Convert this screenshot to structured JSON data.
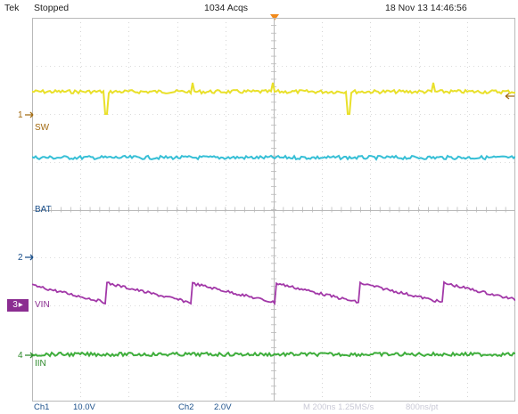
{
  "header": {
    "brand": "Tek",
    "run_state": "Stopped",
    "acquisitions": "1034 Acqs",
    "datetime": "18 Nov 13 14:46:56"
  },
  "channels": [
    {
      "marker": "1",
      "label": "SW",
      "color": "#e9e02a",
      "label_color": "#a26a10"
    },
    {
      "marker": "",
      "label": "BAT",
      "color": "#36bfd6",
      "label_color": "#1a4f8a"
    },
    {
      "marker": "2",
      "label": "",
      "color": "#36bfd6",
      "label_color": "#1a4f8a"
    },
    {
      "marker": "3",
      "label": "VIN",
      "color": "#a238a8",
      "label_color": "#8b2d91"
    },
    {
      "marker": "4",
      "label": "IIN",
      "color": "#3fae3c",
      "label_color": "#2f8a2c"
    }
  ],
  "footer": {
    "ch1_name": "Ch1",
    "ch1_scale": "10.0V",
    "ch2_name": "Ch2",
    "ch2_scale": "2.0V",
    "timebase": "M 200ns 1.25MS/s",
    "sample": "800ns/pt"
  },
  "colors": {
    "grid": "#b9b9b9",
    "sw_trace": "#e9e02a",
    "bat_trace": "#36bfd6",
    "vin_trace": "#a238a8",
    "iin_trace": "#3fae3c",
    "trigger": "#f28a1a"
  }
}
